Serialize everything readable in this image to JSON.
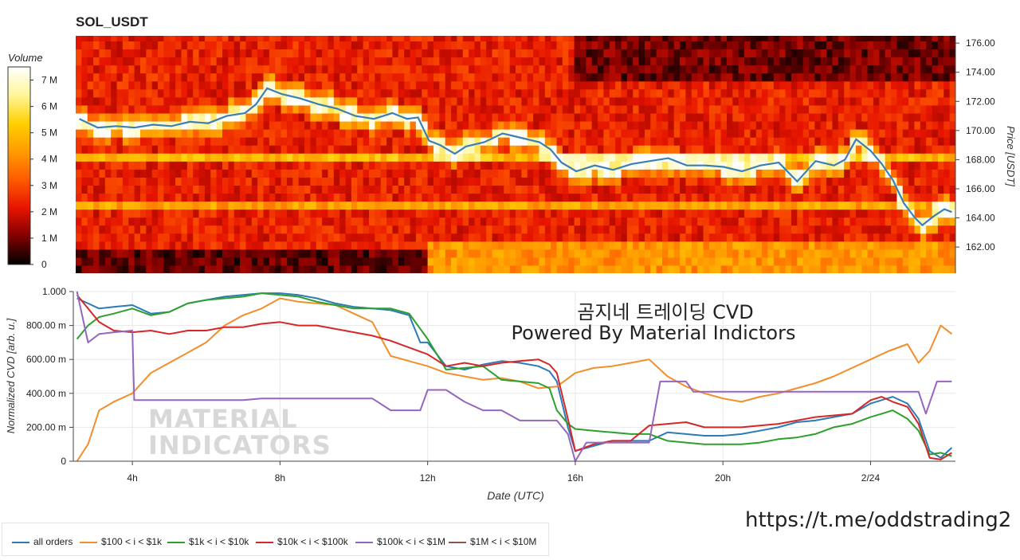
{
  "chart_data": [
    {
      "type": "heatmap",
      "title": "SOL_USDT",
      "ylabel": "Price [USDT]",
      "ylim": [
        160.2,
        176.5
      ],
      "y_ticks": [
        "162.00",
        "164.00",
        "166.00",
        "168.00",
        "170.00",
        "172.00",
        "174.00",
        "176.00"
      ],
      "colorbar": {
        "title": "Volume",
        "range_millions": [
          0,
          7.5
        ],
        "ticks": [
          "0",
          "1 M",
          "2 M",
          "3 M",
          "4 M",
          "5 M",
          "6 M",
          "7 M"
        ],
        "colormap": [
          "#000000",
          "#800000",
          "#e61400",
          "#ff5a00",
          "#ff9b00",
          "#ffd000",
          "#fff69a",
          "#ffffff"
        ]
      },
      "price_line": {
        "color": "#3b7fb5",
        "x_hours": [
          2.5,
          3,
          3.5,
          4,
          4.5,
          5,
          5.5,
          6,
          6.5,
          7,
          7.3,
          7.6,
          8,
          8.5,
          9,
          9.5,
          10,
          10.5,
          11,
          11.4,
          11.7,
          12,
          12.3,
          12.7,
          13,
          13.5,
          14,
          14.5,
          15,
          15.3,
          15.6,
          16,
          16.5,
          17,
          17.5,
          18,
          18.5,
          19,
          19.5,
          20,
          20.5,
          21,
          21.5,
          22,
          22.5,
          23,
          23.3,
          23.6,
          24,
          24.3,
          24.6,
          24.9,
          25.2,
          25.4,
          25.7,
          26,
          26.2
        ],
        "price": [
          170.8,
          170.2,
          170.3,
          170.2,
          170.4,
          170.3,
          170.6,
          170.5,
          171.0,
          171.2,
          171.8,
          172.9,
          172.5,
          172.2,
          171.8,
          171.5,
          171.0,
          170.8,
          171.2,
          170.8,
          170.9,
          169.3,
          169.0,
          168.4,
          168.9,
          169.2,
          169.8,
          169.5,
          169.2,
          168.7,
          167.8,
          167.2,
          167.6,
          167.3,
          167.7,
          167.9,
          168.1,
          167.6,
          167.6,
          167.5,
          167.2,
          167.6,
          167.8,
          166.5,
          167.9,
          167.6,
          168.0,
          169.4,
          168.6,
          167.7,
          166.6,
          165.0,
          164.0,
          163.5,
          164.1,
          164.6,
          164.4
        ]
      }
    },
    {
      "type": "line",
      "title": "",
      "xlabel": "Date (UTC)",
      "ylabel": "Normalized CVD [arb. u.]",
      "xlim_hours": [
        2.4,
        26.3
      ],
      "ylim": [
        0,
        1.0
      ],
      "x_ticks": [
        {
          "hour": 4,
          "label": "4h"
        },
        {
          "hour": 8,
          "label": "8h"
        },
        {
          "hour": 12,
          "label": "12h"
        },
        {
          "hour": 16,
          "label": "16h"
        },
        {
          "hour": 20,
          "label": "20h"
        },
        {
          "hour": 24,
          "label": "2/24"
        }
      ],
      "y_ticks": [
        {
          "value": 0,
          "label": "0"
        },
        {
          "value": 0.2,
          "label": "200.00 m"
        },
        {
          "value": 0.4,
          "label": "400.00 m"
        },
        {
          "value": 0.6,
          "label": "600.00 m"
        },
        {
          "value": 0.8,
          "label": "800.00 m"
        },
        {
          "value": 1.0,
          "label": "1.000"
        }
      ],
      "series": [
        {
          "name": "all orders",
          "color": "#2c7bb6",
          "x": [
            2.5,
            2.8,
            3.1,
            3.5,
            4,
            4.5,
            5,
            5.5,
            6,
            6.5,
            7,
            7.5,
            8,
            8.5,
            9,
            9.5,
            10,
            10.5,
            11,
            11.5,
            11.8,
            12,
            12.5,
            13,
            13.5,
            14,
            14.5,
            15,
            15.3,
            15.5,
            15.8,
            16,
            16.5,
            17,
            17.5,
            18,
            18.5,
            19,
            19.5,
            20,
            20.5,
            21,
            21.5,
            22,
            22.5,
            23,
            23.5,
            24,
            24.3,
            24.6,
            25,
            25.3,
            25.6,
            25.9,
            26.2
          ],
          "y": [
            0.96,
            0.93,
            0.9,
            0.91,
            0.92,
            0.87,
            0.88,
            0.93,
            0.95,
            0.97,
            0.98,
            0.99,
            0.99,
            0.98,
            0.96,
            0.93,
            0.91,
            0.9,
            0.89,
            0.86,
            0.7,
            0.7,
            0.56,
            0.54,
            0.57,
            0.59,
            0.58,
            0.56,
            0.53,
            0.47,
            0.2,
            0.06,
            0.09,
            0.12,
            0.12,
            0.12,
            0.17,
            0.16,
            0.15,
            0.15,
            0.16,
            0.18,
            0.2,
            0.23,
            0.24,
            0.26,
            0.28,
            0.34,
            0.36,
            0.38,
            0.34,
            0.25,
            0.06,
            0.02,
            0.08
          ]
        },
        {
          "name": "$100 < i < $1k",
          "color": "#f28e2b",
          "x": [
            2.5,
            2.8,
            3.1,
            3.5,
            4,
            4.5,
            5,
            5.5,
            6,
            6.5,
            7,
            7.5,
            8,
            8.5,
            9,
            9.5,
            10,
            10.5,
            11,
            11.5,
            12,
            12.5,
            13,
            13.5,
            14,
            14.5,
            15,
            15.5,
            16,
            16.5,
            17,
            17.5,
            18,
            18.5,
            19,
            19.5,
            20,
            20.5,
            21,
            21.5,
            22,
            22.5,
            23,
            23.5,
            24,
            24.5,
            25,
            25.3,
            25.6,
            25.9,
            26.2
          ],
          "y": [
            0.0,
            0.1,
            0.3,
            0.35,
            0.4,
            0.52,
            0.58,
            0.64,
            0.7,
            0.8,
            0.86,
            0.9,
            0.96,
            0.94,
            0.93,
            0.92,
            0.87,
            0.82,
            0.62,
            0.59,
            0.56,
            0.52,
            0.5,
            0.48,
            0.49,
            0.47,
            0.43,
            0.44,
            0.52,
            0.55,
            0.56,
            0.58,
            0.6,
            0.5,
            0.44,
            0.4,
            0.37,
            0.35,
            0.38,
            0.4,
            0.43,
            0.46,
            0.5,
            0.55,
            0.6,
            0.65,
            0.69,
            0.58,
            0.65,
            0.8,
            0.75
          ]
        },
        {
          "name": "$1k < i < $10k",
          "color": "#2ca02c",
          "x": [
            2.5,
            2.8,
            3.1,
            3.5,
            4,
            4.5,
            5,
            5.5,
            6,
            6.5,
            7,
            7.5,
            8,
            8.5,
            9,
            9.5,
            10,
            10.5,
            11,
            11.5,
            12,
            12.5,
            13,
            13.5,
            14,
            14.5,
            15,
            15.3,
            15.5,
            15.8,
            16,
            16.5,
            17,
            17.5,
            18,
            18.5,
            19,
            19.5,
            20,
            20.5,
            21,
            21.5,
            22,
            22.5,
            23,
            23.5,
            24,
            24.3,
            24.6,
            25,
            25.3,
            25.6,
            25.9,
            26.2
          ],
          "y": [
            0.72,
            0.8,
            0.85,
            0.87,
            0.9,
            0.86,
            0.88,
            0.93,
            0.95,
            0.96,
            0.97,
            0.99,
            0.98,
            0.97,
            0.94,
            0.92,
            0.9,
            0.9,
            0.9,
            0.87,
            0.72,
            0.54,
            0.55,
            0.56,
            0.48,
            0.47,
            0.46,
            0.43,
            0.3,
            0.22,
            0.19,
            0.18,
            0.17,
            0.16,
            0.16,
            0.12,
            0.11,
            0.1,
            0.1,
            0.1,
            0.11,
            0.13,
            0.14,
            0.16,
            0.2,
            0.22,
            0.26,
            0.28,
            0.3,
            0.25,
            0.18,
            0.04,
            0.05,
            0.03
          ]
        },
        {
          "name": "$10k < i < $100k",
          "color": "#d62728",
          "x": [
            2.5,
            2.8,
            3.1,
            3.5,
            4,
            4.5,
            5,
            5.5,
            6,
            6.5,
            7,
            7.5,
            8,
            8.5,
            9,
            9.5,
            10,
            10.5,
            11,
            11.5,
            12,
            12.5,
            13,
            13.5,
            14,
            14.5,
            15,
            15.3,
            15.5,
            15.8,
            16,
            16.5,
            17,
            17.5,
            18,
            18.5,
            19,
            19.5,
            20,
            20.5,
            21,
            21.5,
            22,
            22.5,
            23,
            23.5,
            24,
            24.3,
            24.6,
            25,
            25.3,
            25.6,
            25.9,
            26.2
          ],
          "y": [
            0.98,
            0.9,
            0.82,
            0.77,
            0.76,
            0.77,
            0.75,
            0.77,
            0.77,
            0.79,
            0.79,
            0.81,
            0.82,
            0.8,
            0.8,
            0.78,
            0.76,
            0.74,
            0.71,
            0.67,
            0.63,
            0.56,
            0.58,
            0.56,
            0.58,
            0.59,
            0.6,
            0.57,
            0.52,
            0.25,
            0.06,
            0.1,
            0.12,
            0.12,
            0.21,
            0.22,
            0.23,
            0.2,
            0.2,
            0.2,
            0.21,
            0.22,
            0.24,
            0.26,
            0.27,
            0.28,
            0.36,
            0.38,
            0.35,
            0.32,
            0.22,
            0.02,
            0.01,
            0.05
          ]
        },
        {
          "name": "$100k < i < $1M",
          "color": "#9467bd",
          "x": [
            2.5,
            2.8,
            3.1,
            3.5,
            4,
            4.05,
            5,
            6,
            7,
            7.5,
            8,
            9,
            10,
            10.5,
            11,
            11.5,
            11.8,
            12,
            12.5,
            13,
            13.5,
            14,
            14.5,
            15,
            15.3,
            15.5,
            15.8,
            16,
            16.3,
            17,
            18,
            18.3,
            19,
            19.2,
            20,
            21,
            22,
            23,
            24,
            25,
            25.3,
            25.5,
            25.8,
            26.2
          ],
          "y": [
            1.0,
            0.7,
            0.75,
            0.76,
            0.77,
            0.36,
            0.36,
            0.36,
            0.36,
            0.37,
            0.37,
            0.37,
            0.37,
            0.37,
            0.3,
            0.3,
            0.3,
            0.42,
            0.42,
            0.35,
            0.3,
            0.3,
            0.24,
            0.24,
            0.24,
            0.24,
            0.16,
            0.0,
            0.11,
            0.11,
            0.11,
            0.47,
            0.47,
            0.41,
            0.41,
            0.41,
            0.41,
            0.41,
            0.41,
            0.41,
            0.41,
            0.28,
            0.47,
            0.47
          ]
        },
        {
          "name": "$1M < i < $10M",
          "color": "#8c564b",
          "x": [],
          "y": []
        }
      ]
    }
  ],
  "overlay": {
    "line1": "곰지네 트레이딩 CVD",
    "line2": "Powered By Material Indictors"
  },
  "watermark": {
    "line1": "MATERIAL",
    "line2": "INDICATORS"
  },
  "url": "https://t.me/oddstrading2"
}
